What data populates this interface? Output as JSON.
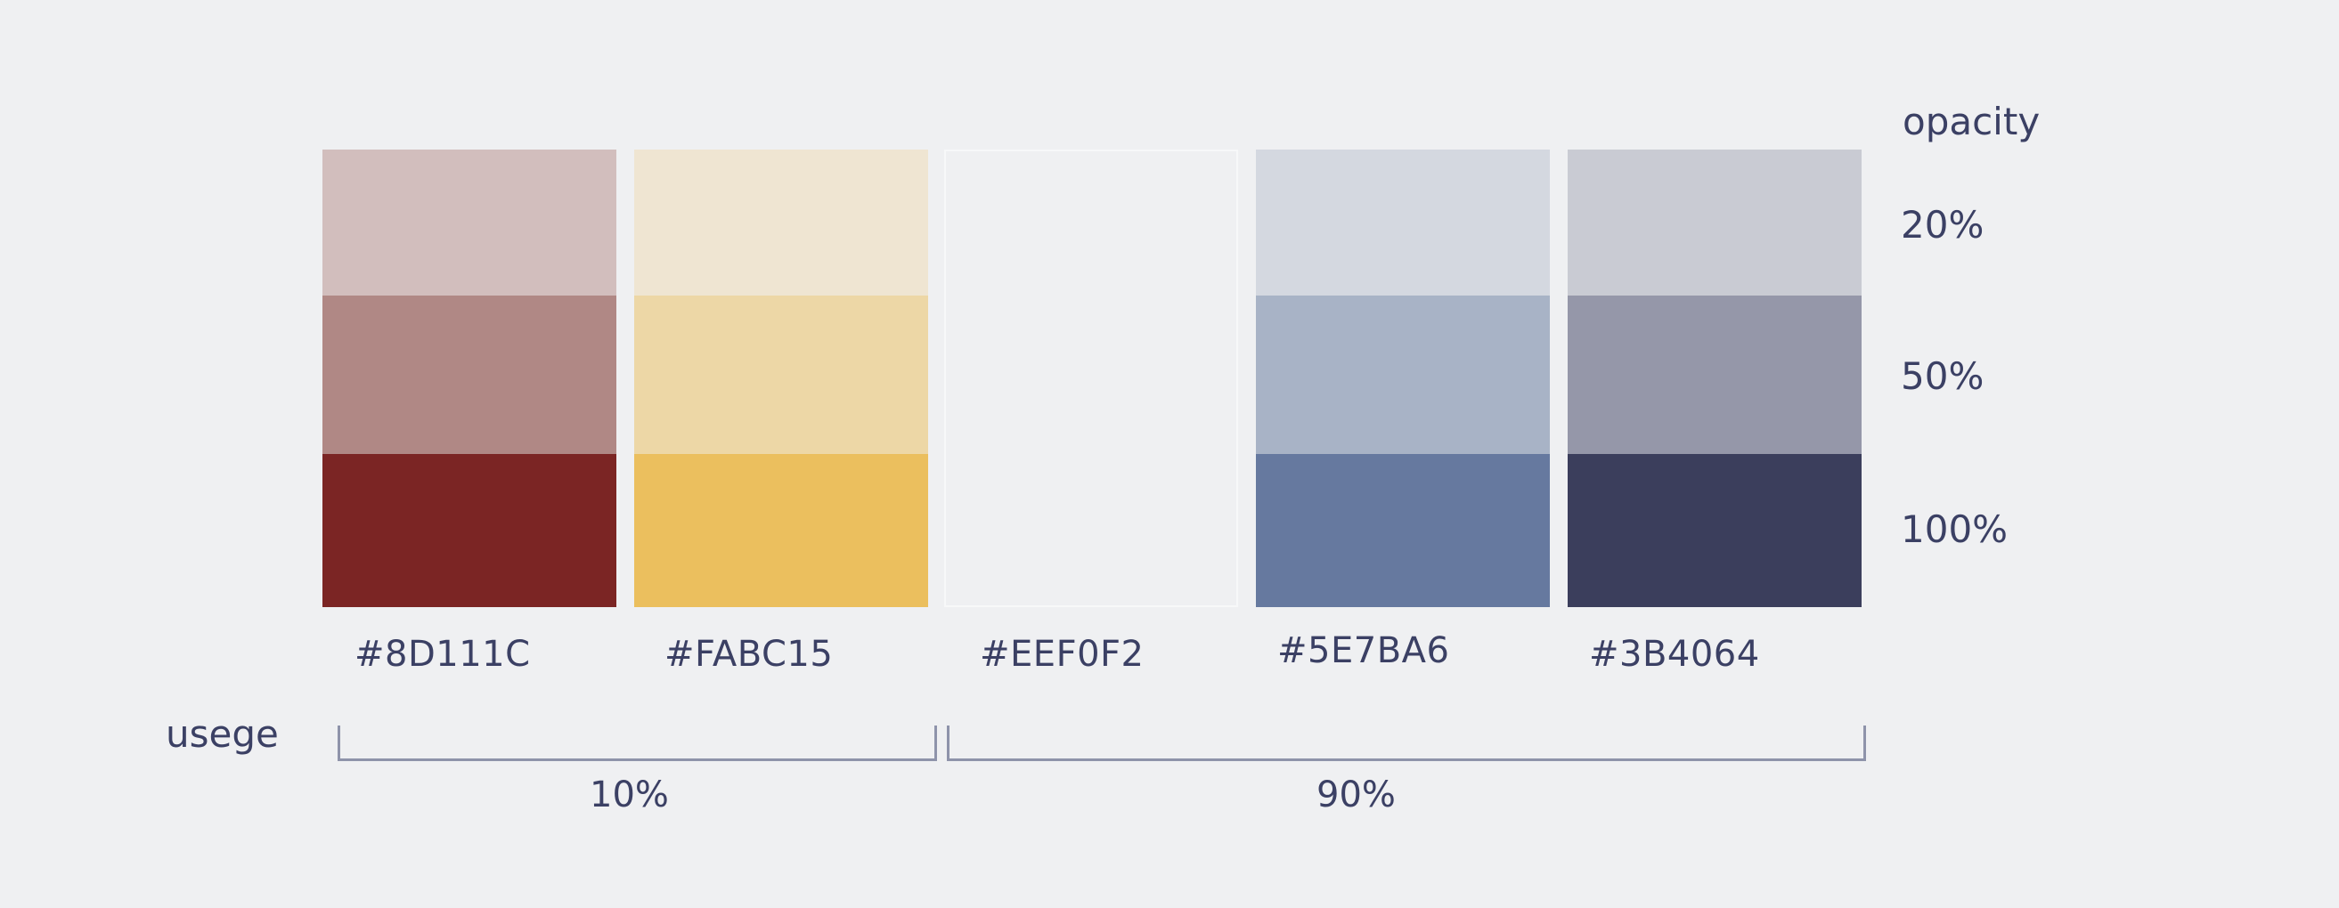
{
  "opacity_heading": "opacity",
  "opacity_levels": [
    "20%",
    "50%",
    "100%"
  ],
  "usage_label": "usege",
  "swatches": [
    {
      "hex": "#8D111C",
      "c20": "#D2BEBD",
      "c50": "#B08885",
      "c100": "#7B2524"
    },
    {
      "hex": "#FABC15",
      "c20": "#EFE5D2",
      "c50": "#EDD7A6",
      "c100": "#EBBF5E"
    },
    {
      "hex": "#EEF0F2",
      "c20": "#EFF0F2",
      "c50": "#EFF0F2",
      "c100": "#EFF0F2"
    },
    {
      "hex": "#5E7BA6",
      "c20": "#D4D8E0",
      "c50": "#A8B3C6",
      "c100": "#66799F"
    },
    {
      "hex": "#3B4064",
      "c20": "#C9CBD3",
      "c50": "#9597A9",
      "c100": "#3B3E5C"
    }
  ],
  "usage_groups": [
    {
      "percent": "10%"
    },
    {
      "percent": "90%"
    }
  ]
}
